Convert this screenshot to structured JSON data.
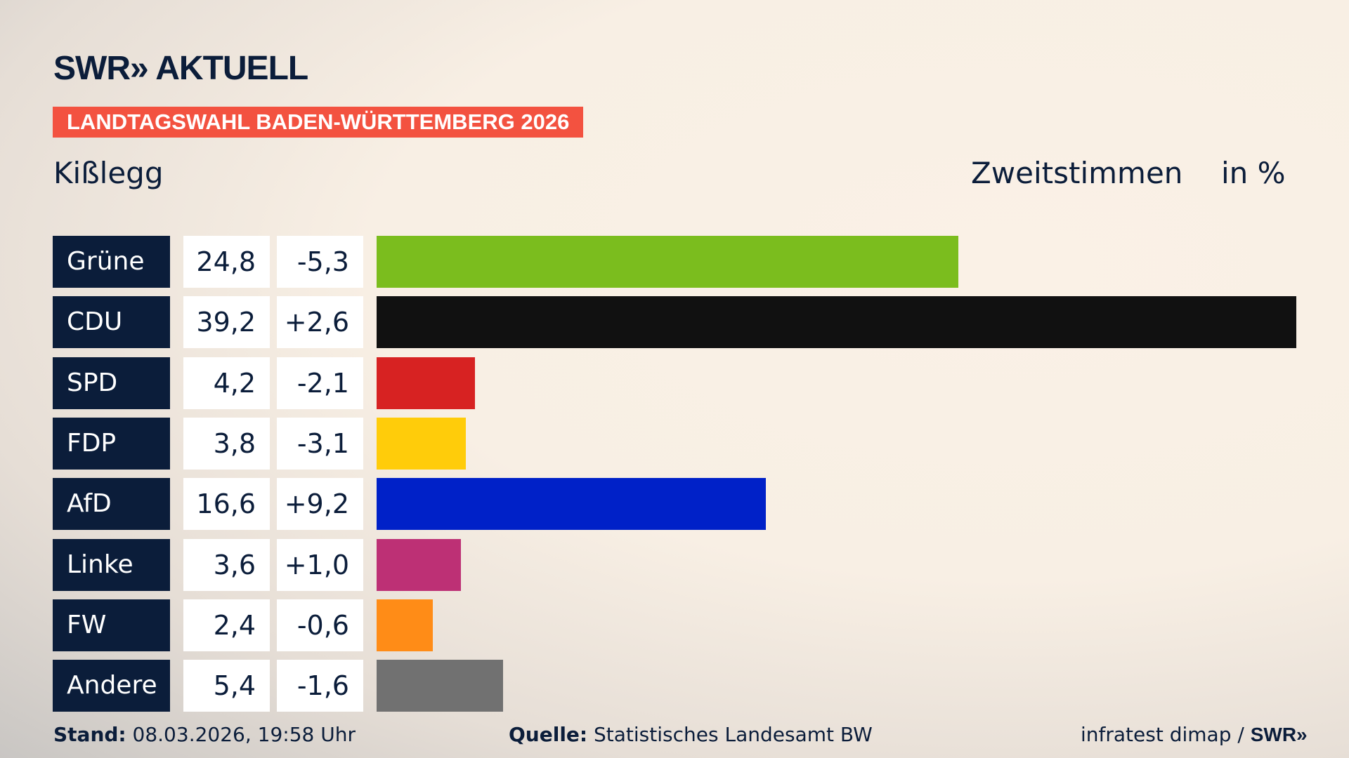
{
  "brand": {
    "logo": "SWR» AKTUELL",
    "footer_logo": "SWR»"
  },
  "banner": "LANDTAGSWAHL BADEN-WÜRTTEMBERG 2026",
  "region": "Kißlegg",
  "metric": "Zweitstimmen",
  "unit": "in %",
  "chart_data": {
    "type": "bar",
    "orientation": "horizontal",
    "categories": [
      "Grüne",
      "CDU",
      "SPD",
      "FDP",
      "AfD",
      "Linke",
      "FW",
      "Andere"
    ],
    "values": [
      24.8,
      39.2,
      4.2,
      3.8,
      16.6,
      3.6,
      2.4,
      5.4
    ],
    "value_labels": [
      "24,8",
      "39,2",
      "4,2",
      "3,8",
      "16,6",
      "3,6",
      "2,4",
      "5,4"
    ],
    "change_labels": [
      "-5,3",
      "+2,6",
      "-2,1",
      "-3,1",
      "+9,2",
      "+1,0",
      "-0,6",
      "-1,6"
    ],
    "changes": [
      -5.3,
      2.6,
      -2.1,
      -3.1,
      9.2,
      1.0,
      -0.6,
      -1.6
    ],
    "colors": [
      "#7bbd1e",
      "#111111",
      "#d72222",
      "#ffcc0a",
      "#0021c8",
      "#bd3075",
      "#ff8c17",
      "#717171"
    ],
    "xlim": [
      0,
      39.2
    ]
  },
  "footer": {
    "stand_label": "Stand:",
    "stand_value": "08.03.2026, 19:58 Uhr",
    "source_label": "Quelle:",
    "source_value": "Statistisches Landesamt BW",
    "credit": "infratest dimap /"
  }
}
